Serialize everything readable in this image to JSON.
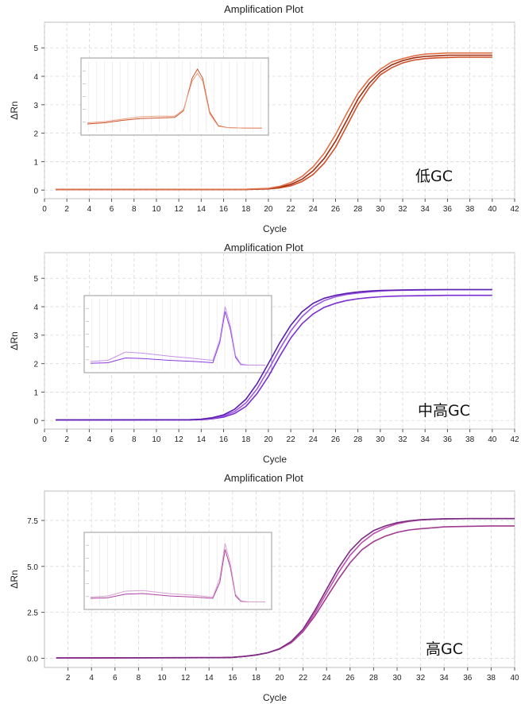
{
  "chart_data": [
    {
      "type": "line",
      "title": "Amplification Plot",
      "xlabel": "Cycle",
      "ylabel": "ΔRn",
      "annotation": "低GC",
      "xlim": [
        0,
        42
      ],
      "ylim": [
        -0.3,
        5.9
      ],
      "xticks": [
        0,
        2,
        4,
        6,
        8,
        10,
        12,
        14,
        16,
        18,
        20,
        22,
        24,
        26,
        28,
        30,
        32,
        34,
        36,
        38,
        40,
        42
      ],
      "yticks": [
        0,
        1,
        2,
        3,
        4,
        5
      ],
      "ytick_labels": [
        "0",
        "1",
        "2",
        "3",
        "4",
        "5"
      ],
      "grid": true,
      "colors": [
        "#d0502a",
        "#a02c10",
        "#e07048"
      ],
      "series": [
        {
          "x": [
            1,
            18,
            20,
            21,
            22,
            23,
            24,
            25,
            26,
            27,
            28,
            29,
            30,
            31,
            32,
            33,
            34,
            35,
            36,
            37,
            38,
            40
          ],
          "y": [
            0.02,
            0.02,
            0.04,
            0.08,
            0.15,
            0.3,
            0.55,
            0.95,
            1.5,
            2.25,
            3.0,
            3.6,
            4.05,
            4.3,
            4.47,
            4.57,
            4.62,
            4.65,
            4.66,
            4.67,
            4.67,
            4.67
          ]
        },
        {
          "x": [
            1,
            18,
            20,
            21,
            22,
            23,
            24,
            25,
            26,
            27,
            28,
            29,
            30,
            31,
            32,
            33,
            34,
            35,
            36,
            37,
            38,
            40
          ],
          "y": [
            0.02,
            0.02,
            0.05,
            0.1,
            0.2,
            0.38,
            0.68,
            1.12,
            1.72,
            2.45,
            3.2,
            3.75,
            4.15,
            4.4,
            4.55,
            4.65,
            4.7,
            4.72,
            4.74,
            4.74,
            4.74,
            4.74
          ]
        },
        {
          "x": [
            1,
            18,
            20,
            21,
            22,
            23,
            24,
            25,
            26,
            27,
            28,
            29,
            30,
            31,
            32,
            33,
            34,
            35,
            36,
            37,
            38,
            40
          ],
          "y": [
            0.02,
            0.03,
            0.06,
            0.13,
            0.26,
            0.48,
            0.82,
            1.3,
            1.95,
            2.7,
            3.4,
            3.9,
            4.25,
            4.5,
            4.62,
            4.72,
            4.78,
            4.8,
            4.82,
            4.82,
            4.82,
            4.82
          ]
        }
      ],
      "inset": {
        "type": "line",
        "colors": [
          "#d0502a",
          "#e8a080"
        ],
        "series": [
          {
            "x": [
              0,
              0.1,
              0.2,
              0.3,
              0.4,
              0.5,
              0.55,
              0.6,
              0.63,
              0.66,
              0.7,
              0.75,
              0.8,
              0.9,
              1.0
            ],
            "y": [
              0.08,
              0.1,
              0.14,
              0.17,
              0.18,
              0.19,
              0.3,
              0.85,
              1.0,
              0.85,
              0.28,
              0.05,
              0.02,
              0.01,
              0.01
            ]
          },
          {
            "x": [
              0,
              0.1,
              0.2,
              0.3,
              0.4,
              0.5,
              0.55,
              0.6,
              0.63,
              0.66,
              0.7,
              0.75,
              0.8,
              0.9,
              1.0
            ],
            "y": [
              0.1,
              0.12,
              0.16,
              0.2,
              0.21,
              0.21,
              0.32,
              0.8,
              0.93,
              0.8,
              0.25,
              0.04,
              0.02,
              0.01,
              0.01
            ]
          }
        ]
      }
    },
    {
      "type": "line",
      "title": "Amplification Plot",
      "xlabel": "Cycle",
      "ylabel": "ΔRn",
      "annotation": "中高GC",
      "xlim": [
        0,
        42
      ],
      "ylim": [
        -0.3,
        5.9
      ],
      "xticks": [
        0,
        2,
        4,
        6,
        8,
        10,
        12,
        14,
        16,
        18,
        20,
        22,
        24,
        26,
        28,
        30,
        32,
        34,
        36,
        38,
        40,
        42
      ],
      "yticks": [
        0,
        1,
        2,
        3,
        4,
        5
      ],
      "ytick_labels": [
        "0",
        "1",
        "2",
        "3",
        "4",
        "5"
      ],
      "grid": true,
      "colors": [
        "#7a2fd0",
        "#9b59e0",
        "#5a1fb0"
      ],
      "series": [
        {
          "x": [
            1,
            13,
            14,
            15,
            16,
            17,
            18,
            19,
            20,
            21,
            22,
            23,
            24,
            25,
            26,
            27,
            28,
            29,
            30,
            31,
            32,
            34,
            36,
            40
          ],
          "y": [
            0.02,
            0.02,
            0.03,
            0.06,
            0.12,
            0.25,
            0.5,
            0.95,
            1.55,
            2.25,
            2.9,
            3.4,
            3.75,
            3.98,
            4.12,
            4.22,
            4.28,
            4.32,
            4.35,
            4.37,
            4.38,
            4.39,
            4.4,
            4.4
          ]
        },
        {
          "x": [
            1,
            13,
            14,
            15,
            16,
            17,
            18,
            19,
            20,
            21,
            22,
            23,
            24,
            25,
            26,
            27,
            28,
            29,
            30,
            31,
            32,
            34,
            36,
            40
          ],
          "y": [
            0.02,
            0.02,
            0.04,
            0.08,
            0.16,
            0.32,
            0.62,
            1.12,
            1.78,
            2.5,
            3.15,
            3.65,
            4.0,
            4.22,
            4.35,
            4.43,
            4.48,
            4.52,
            4.55,
            4.57,
            4.58,
            4.59,
            4.6,
            4.6
          ]
        },
        {
          "x": [
            1,
            13,
            14,
            15,
            16,
            17,
            18,
            19,
            20,
            21,
            22,
            23,
            24,
            25,
            26,
            27,
            28,
            29,
            30,
            31,
            32,
            34,
            36,
            40
          ],
          "y": [
            0.02,
            0.03,
            0.05,
            0.1,
            0.2,
            0.4,
            0.75,
            1.3,
            2.0,
            2.72,
            3.35,
            3.82,
            4.12,
            4.3,
            4.4,
            4.47,
            4.52,
            4.55,
            4.57,
            4.58,
            4.59,
            4.6,
            4.6,
            4.6
          ]
        }
      ],
      "inset": {
        "type": "line",
        "colors": [
          "#8a3ae0",
          "#c890e8"
        ],
        "series": [
          {
            "x": [
              0,
              0.1,
              0.2,
              0.3,
              0.45,
              0.6,
              0.7,
              0.74,
              0.77,
              0.8,
              0.83,
              0.86,
              0.9,
              1.0
            ],
            "y": [
              0.05,
              0.06,
              0.14,
              0.13,
              0.1,
              0.08,
              0.06,
              0.4,
              0.92,
              0.62,
              0.15,
              0.03,
              0.02,
              0.02
            ]
          },
          {
            "x": [
              0,
              0.1,
              0.2,
              0.3,
              0.45,
              0.6,
              0.7,
              0.74,
              0.77,
              0.8,
              0.83,
              0.86,
              0.9,
              1.0
            ],
            "y": [
              0.08,
              0.1,
              0.24,
              0.22,
              0.17,
              0.13,
              0.1,
              0.45,
              1.0,
              0.68,
              0.18,
              0.04,
              0.02,
              0.02
            ]
          }
        ]
      }
    },
    {
      "type": "line",
      "title": "Amplification Plot",
      "xlabel": "Cycle",
      "ylabel": "ΔRn",
      "annotation": "高GC",
      "xlim": [
        0,
        40
      ],
      "ylim": [
        -0.5,
        9.1
      ],
      "xticks": [
        2,
        4,
        6,
        8,
        10,
        12,
        14,
        16,
        18,
        20,
        22,
        24,
        26,
        28,
        30,
        32,
        34,
        36,
        38,
        40
      ],
      "yticks": [
        0,
        2.5,
        5,
        7.5
      ],
      "ytick_labels": [
        "0.0",
        "2.5",
        "5.0",
        "7.5"
      ],
      "grid": true,
      "colors": [
        "#a03a90",
        "#c050b0",
        "#7a2a80"
      ],
      "series": [
        {
          "x": [
            1,
            15,
            16,
            17,
            18,
            19,
            20,
            21,
            22,
            23,
            24,
            25,
            26,
            27,
            28,
            29,
            30,
            31,
            32,
            33,
            34,
            36,
            38,
            40
          ],
          "y": [
            0.02,
            0.03,
            0.05,
            0.1,
            0.18,
            0.3,
            0.5,
            0.85,
            1.45,
            2.3,
            3.3,
            4.3,
            5.2,
            5.9,
            6.35,
            6.65,
            6.85,
            6.98,
            7.05,
            7.1,
            7.15,
            7.18,
            7.2,
            7.2
          ]
        },
        {
          "x": [
            1,
            15,
            16,
            17,
            18,
            19,
            20,
            21,
            22,
            23,
            24,
            25,
            26,
            27,
            28,
            29,
            30,
            31,
            32,
            33,
            34,
            36,
            38,
            40
          ],
          "y": [
            0.02,
            0.03,
            0.05,
            0.1,
            0.18,
            0.3,
            0.5,
            0.88,
            1.5,
            2.45,
            3.55,
            4.65,
            5.6,
            6.3,
            6.78,
            7.1,
            7.32,
            7.45,
            7.52,
            7.56,
            7.58,
            7.6,
            7.6,
            7.6
          ]
        },
        {
          "x": [
            1,
            15,
            16,
            17,
            18,
            19,
            20,
            21,
            22,
            23,
            24,
            25,
            26,
            27,
            28,
            29,
            30,
            31,
            32,
            33,
            34,
            36,
            38,
            40
          ],
          "y": [
            0.02,
            0.03,
            0.05,
            0.1,
            0.18,
            0.3,
            0.52,
            0.92,
            1.58,
            2.6,
            3.75,
            4.9,
            5.85,
            6.5,
            6.95,
            7.2,
            7.38,
            7.48,
            7.54,
            7.57,
            7.59,
            7.6,
            7.6,
            7.6
          ]
        }
      ],
      "inset": {
        "type": "line",
        "colors": [
          "#b040a0",
          "#d8a0d0"
        ],
        "series": [
          {
            "x": [
              0,
              0.1,
              0.2,
              0.3,
              0.45,
              0.6,
              0.7,
              0.74,
              0.77,
              0.8,
              0.83,
              0.86,
              0.9,
              1.0
            ],
            "y": [
              0.08,
              0.09,
              0.15,
              0.16,
              0.12,
              0.1,
              0.08,
              0.35,
              0.9,
              0.6,
              0.12,
              0.03,
              0.02,
              0.02
            ]
          },
          {
            "x": [
              0,
              0.1,
              0.2,
              0.3,
              0.45,
              0.6,
              0.7,
              0.74,
              0.77,
              0.8,
              0.83,
              0.86,
              0.9,
              1.0
            ],
            "y": [
              0.1,
              0.12,
              0.2,
              0.21,
              0.16,
              0.13,
              0.1,
              0.42,
              1.0,
              0.66,
              0.15,
              0.04,
              0.02,
              0.02
            ]
          }
        ]
      }
    }
  ]
}
